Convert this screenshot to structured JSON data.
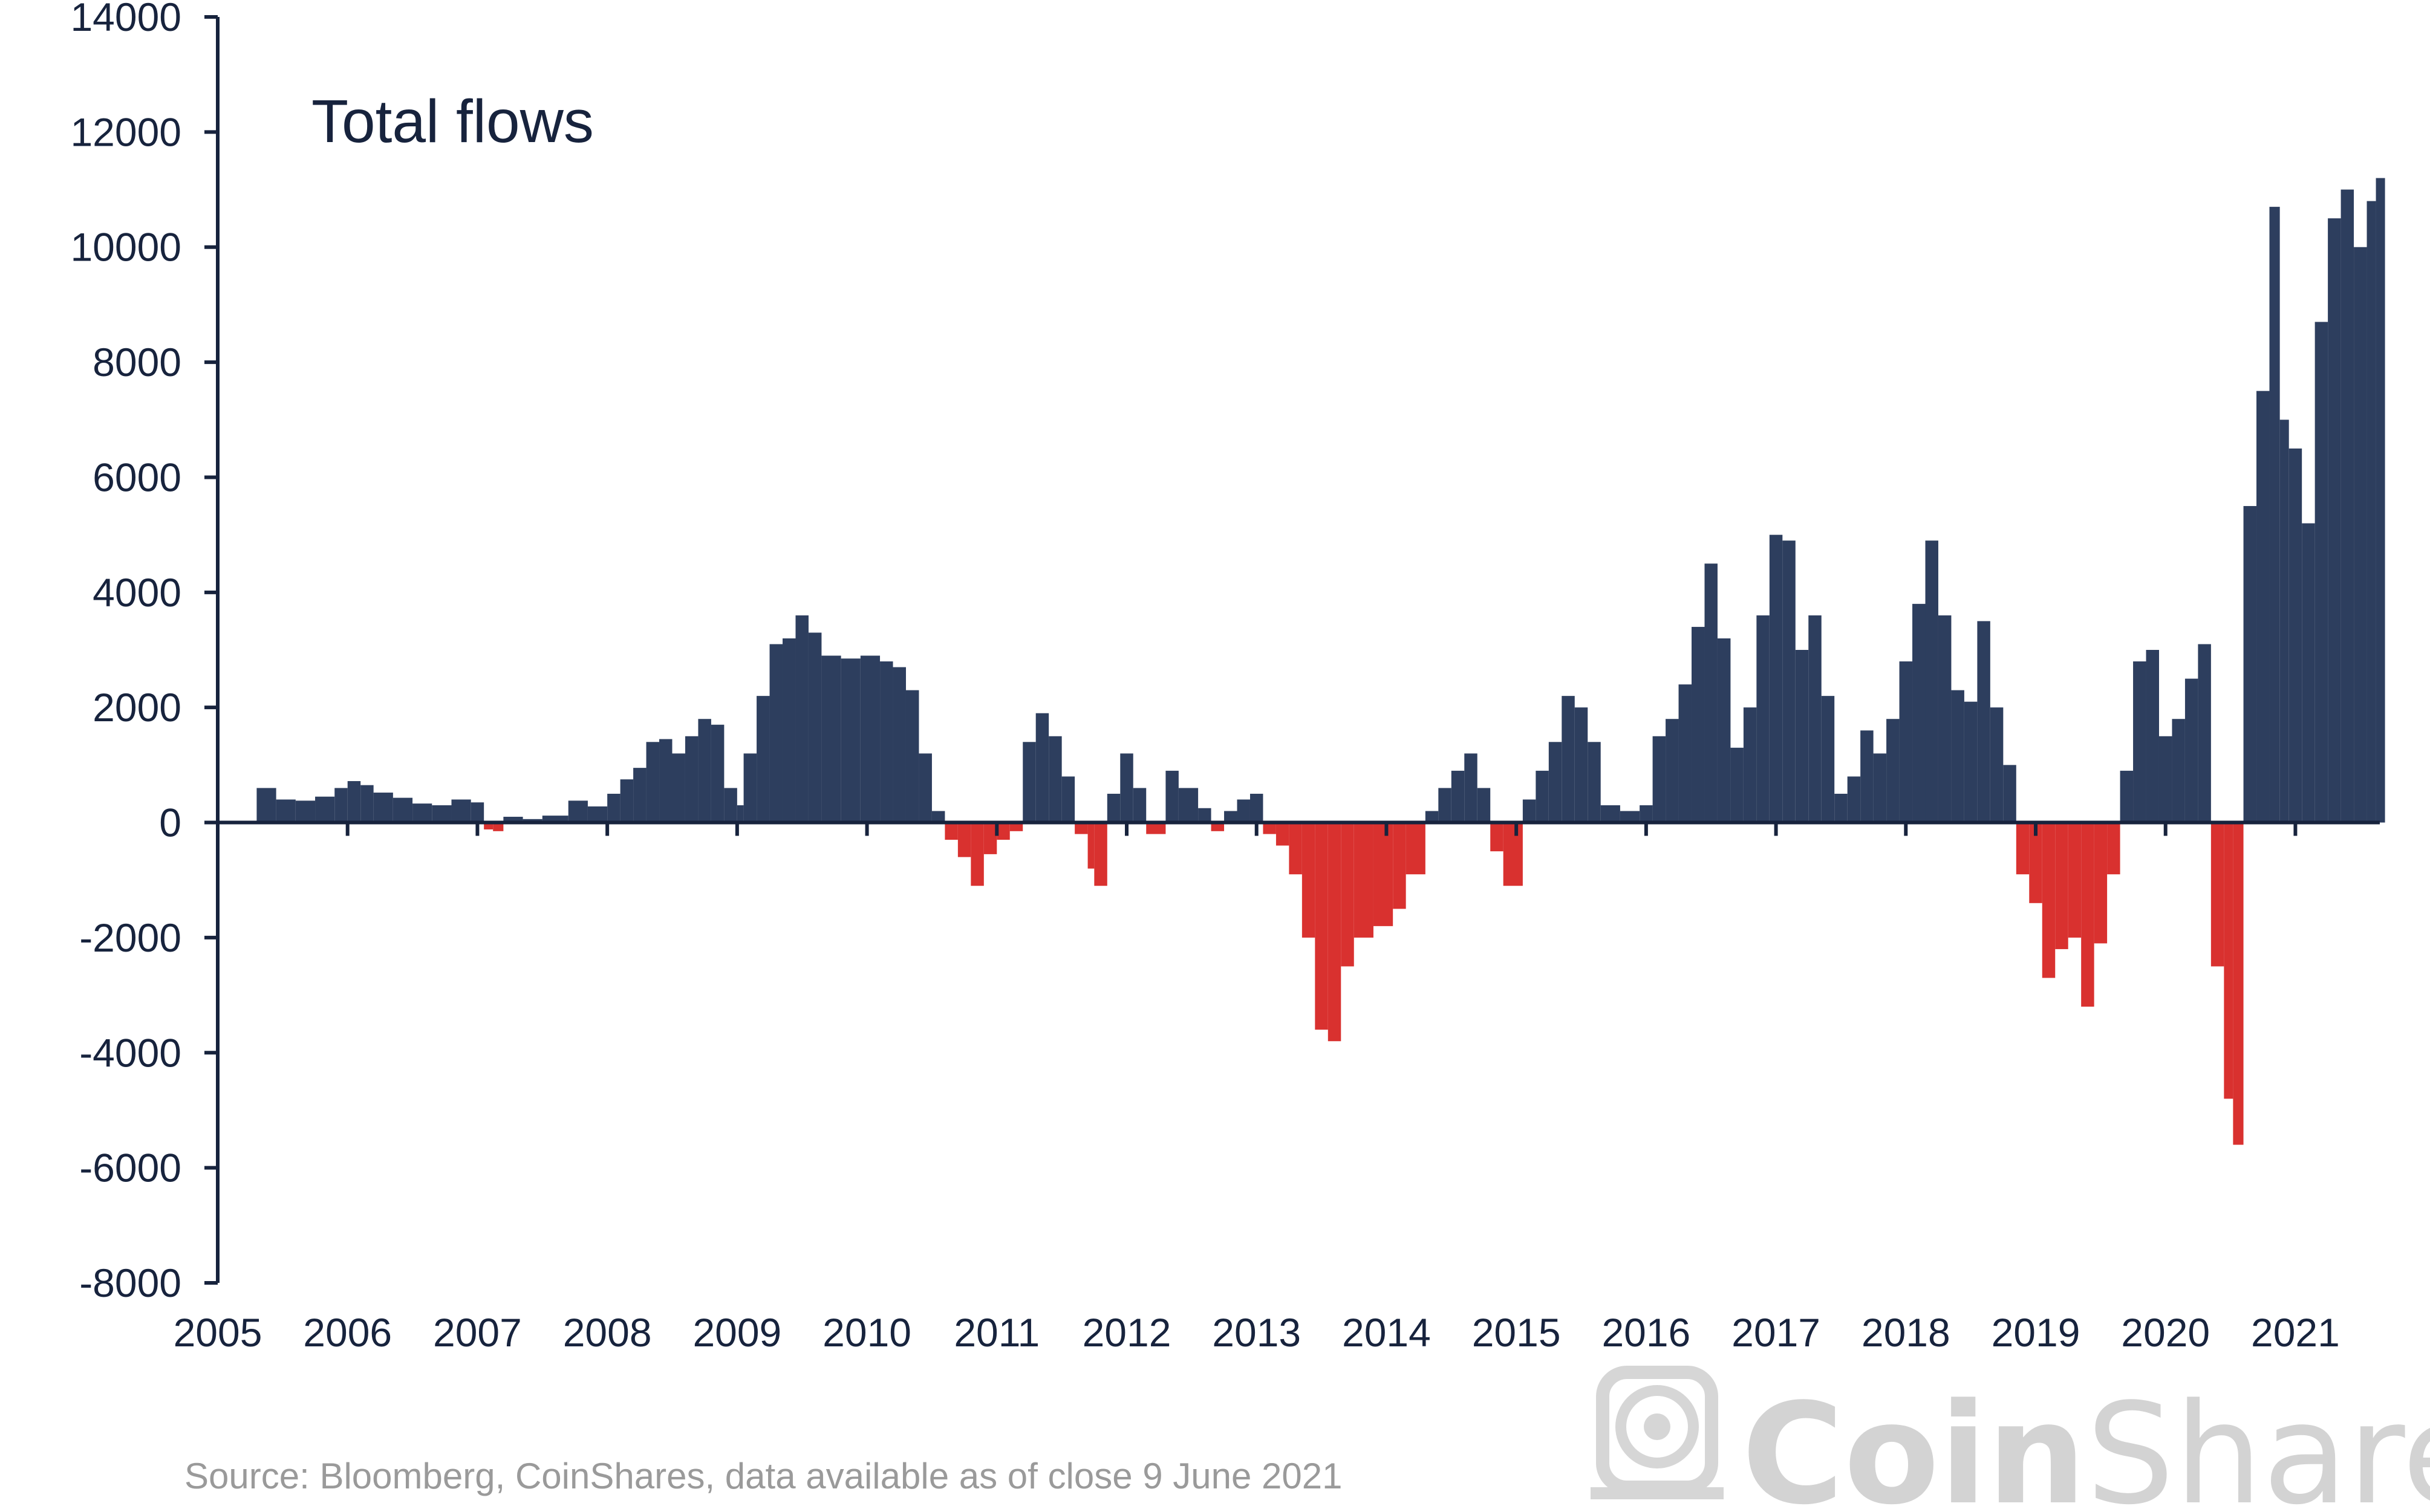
{
  "chart_data": {
    "type": "bar",
    "title": "Total flows",
    "xlabel": "",
    "ylabel": "",
    "ylim": [
      -8000,
      14000
    ],
    "xlim": [
      2005,
      2021.65
    ],
    "y_ticks": [
      14000,
      12000,
      10000,
      8000,
      6000,
      4000,
      2000,
      0,
      -2000,
      -4000,
      -6000,
      -8000
    ],
    "x_ticks": [
      2005,
      2006,
      2007,
      2008,
      2009,
      2010,
      2011,
      2012,
      2013,
      2014,
      2015,
      2016,
      2017,
      2018,
      2019,
      2020,
      2021
    ],
    "grid": false,
    "positive_color": "#2d3e5e",
    "negative_color": "#d9312f",
    "series": [
      {
        "name": "Total flows",
        "points": [
          [
            2005.3,
            600
          ],
          [
            2005.45,
            400
          ],
          [
            2005.6,
            380
          ],
          [
            2005.75,
            450
          ],
          [
            2005.9,
            600
          ],
          [
            2006.0,
            720
          ],
          [
            2006.1,
            650
          ],
          [
            2006.2,
            520
          ],
          [
            2006.35,
            430
          ],
          [
            2006.5,
            330
          ],
          [
            2006.65,
            300
          ],
          [
            2006.8,
            400
          ],
          [
            2006.95,
            350
          ],
          [
            2007.05,
            -120
          ],
          [
            2007.12,
            -150
          ],
          [
            2007.2,
            100
          ],
          [
            2007.35,
            60
          ],
          [
            2007.5,
            120
          ],
          [
            2007.7,
            380
          ],
          [
            2007.85,
            280
          ],
          [
            2008.0,
            500
          ],
          [
            2008.1,
            750
          ],
          [
            2008.2,
            950
          ],
          [
            2008.3,
            1400
          ],
          [
            2008.4,
            1450
          ],
          [
            2008.5,
            1200
          ],
          [
            2008.6,
            1500
          ],
          [
            2008.7,
            1800
          ],
          [
            2008.8,
            1700
          ],
          [
            2008.9,
            600
          ],
          [
            2009.0,
            300
          ],
          [
            2009.05,
            1200
          ],
          [
            2009.15,
            2200
          ],
          [
            2009.25,
            3100
          ],
          [
            2009.35,
            3200
          ],
          [
            2009.45,
            3600
          ],
          [
            2009.55,
            3300
          ],
          [
            2009.65,
            2900
          ],
          [
            2009.8,
            2850
          ],
          [
            2009.95,
            2900
          ],
          [
            2010.1,
            2800
          ],
          [
            2010.2,
            2700
          ],
          [
            2010.3,
            2300
          ],
          [
            2010.4,
            1200
          ],
          [
            2010.5,
            200
          ],
          [
            2010.6,
            -300
          ],
          [
            2010.7,
            -600
          ],
          [
            2010.8,
            -1100
          ],
          [
            2010.9,
            -550
          ],
          [
            2011.0,
            -300
          ],
          [
            2011.1,
            -150
          ],
          [
            2011.2,
            1400
          ],
          [
            2011.3,
            1900
          ],
          [
            2011.4,
            1500
          ],
          [
            2011.5,
            800
          ],
          [
            2011.6,
            -200
          ],
          [
            2011.7,
            -800
          ],
          [
            2011.75,
            -1100
          ],
          [
            2011.85,
            500
          ],
          [
            2011.95,
            1200
          ],
          [
            2012.05,
            600
          ],
          [
            2012.15,
            -200
          ],
          [
            2012.3,
            900
          ],
          [
            2012.4,
            600
          ],
          [
            2012.55,
            250
          ],
          [
            2012.65,
            -150
          ],
          [
            2012.75,
            200
          ],
          [
            2012.85,
            400
          ],
          [
            2012.95,
            500
          ],
          [
            2013.05,
            -200
          ],
          [
            2013.15,
            -400
          ],
          [
            2013.25,
            -900
          ],
          [
            2013.35,
            -2000
          ],
          [
            2013.45,
            -3600
          ],
          [
            2013.55,
            -3800
          ],
          [
            2013.65,
            -2500
          ],
          [
            2013.75,
            -2000
          ],
          [
            2013.9,
            -1800
          ],
          [
            2014.05,
            -1500
          ],
          [
            2014.15,
            -900
          ],
          [
            2014.3,
            200
          ],
          [
            2014.4,
            600
          ],
          [
            2014.5,
            900
          ],
          [
            2014.6,
            1200
          ],
          [
            2014.7,
            600
          ],
          [
            2014.8,
            -500
          ],
          [
            2014.9,
            -1100
          ],
          [
            2015.05,
            400
          ],
          [
            2015.15,
            900
          ],
          [
            2015.25,
            1400
          ],
          [
            2015.35,
            2200
          ],
          [
            2015.45,
            2000
          ],
          [
            2015.55,
            1400
          ],
          [
            2015.65,
            300
          ],
          [
            2015.8,
            200
          ],
          [
            2015.95,
            300
          ],
          [
            2016.05,
            1500
          ],
          [
            2016.15,
            1800
          ],
          [
            2016.25,
            2400
          ],
          [
            2016.35,
            3400
          ],
          [
            2016.45,
            4500
          ],
          [
            2016.55,
            3200
          ],
          [
            2016.65,
            1300
          ],
          [
            2016.75,
            2000
          ],
          [
            2016.85,
            3600
          ],
          [
            2016.95,
            5000
          ],
          [
            2017.05,
            4900
          ],
          [
            2017.15,
            3000
          ],
          [
            2017.25,
            3600
          ],
          [
            2017.35,
            2200
          ],
          [
            2017.45,
            500
          ],
          [
            2017.55,
            800
          ],
          [
            2017.65,
            1600
          ],
          [
            2017.75,
            1200
          ],
          [
            2017.85,
            1800
          ],
          [
            2017.95,
            2800
          ],
          [
            2018.05,
            3800
          ],
          [
            2018.15,
            4900
          ],
          [
            2018.25,
            3600
          ],
          [
            2018.35,
            2300
          ],
          [
            2018.45,
            2100
          ],
          [
            2018.55,
            3500
          ],
          [
            2018.65,
            2000
          ],
          [
            2018.75,
            1000
          ],
          [
            2018.85,
            -900
          ],
          [
            2018.95,
            -1400
          ],
          [
            2019.05,
            -2700
          ],
          [
            2019.15,
            -2200
          ],
          [
            2019.25,
            -2000
          ],
          [
            2019.35,
            -3200
          ],
          [
            2019.45,
            -2100
          ],
          [
            2019.55,
            -900
          ],
          [
            2019.65,
            900
          ],
          [
            2019.75,
            2800
          ],
          [
            2019.85,
            3000
          ],
          [
            2019.95,
            1500
          ],
          [
            2020.05,
            1800
          ],
          [
            2020.15,
            2500
          ],
          [
            2020.25,
            3100
          ],
          [
            2020.35,
            -2500
          ],
          [
            2020.45,
            -4800
          ],
          [
            2020.52,
            -5600
          ],
          [
            2020.6,
            5500
          ],
          [
            2020.7,
            7500
          ],
          [
            2020.8,
            10700
          ],
          [
            2020.88,
            7000
          ],
          [
            2020.95,
            6500
          ],
          [
            2021.05,
            5200
          ],
          [
            2021.15,
            8700
          ],
          [
            2021.25,
            10500
          ],
          [
            2021.35,
            11000
          ],
          [
            2021.45,
            10000
          ],
          [
            2021.55,
            10800
          ],
          [
            2021.62,
            11200
          ]
        ]
      }
    ]
  },
  "source_note": "Source: Bloomberg, CoinShares, data available as of close 9 June 2021",
  "brand": {
    "name_bold": "Coin",
    "name_light": "Shares",
    "logo_icon": "coinshares-helmet-icon"
  }
}
